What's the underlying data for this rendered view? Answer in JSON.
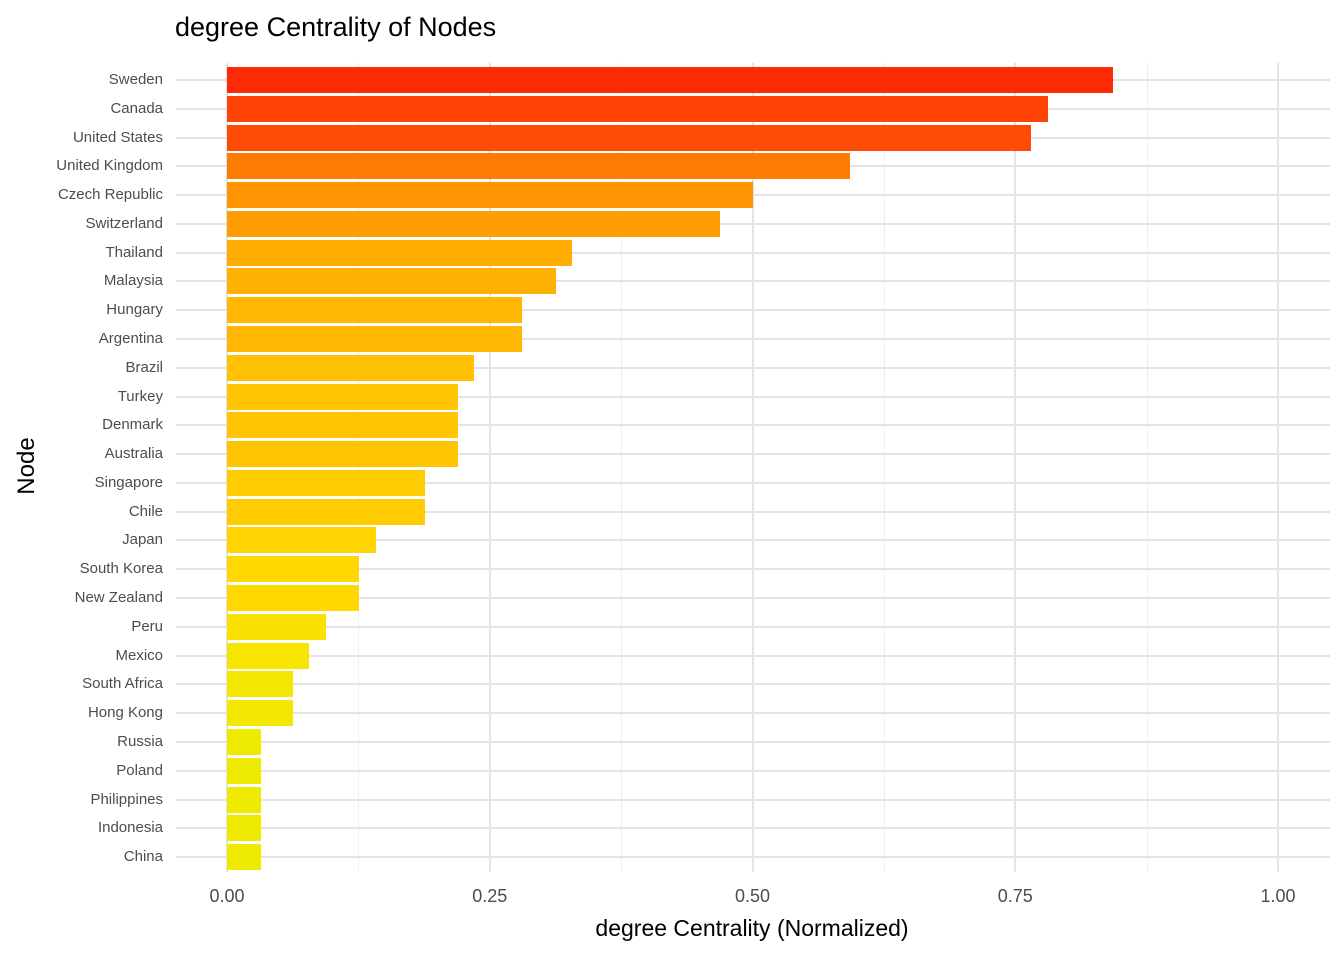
{
  "chart_data": {
    "type": "bar",
    "orientation": "horizontal",
    "title": "degree Centrality of Nodes",
    "xlabel": "degree Centrality (Normalized)",
    "ylabel": "Node",
    "xlim": [
      0,
      1.05
    ],
    "grid": true,
    "legend": "none",
    "x_ticks": {
      "labels": [
        "0.00",
        "0.25",
        "0.50",
        "0.75",
        "1.00"
      ],
      "values": [
        0,
        0.25,
        0.5,
        0.75,
        1.0
      ]
    },
    "x_minor_gridlines": [
      0.125,
      0.375,
      0.625,
      0.875
    ],
    "categories": [
      "Sweden",
      "Canada",
      "United States",
      "United Kingdom",
      "Czech Republic",
      "Switzerland",
      "Thailand",
      "Malaysia",
      "Hungary",
      "Argentina",
      "Brazil",
      "Turkey",
      "Denmark",
      "Australia",
      "Singapore",
      "Chile",
      "Japan",
      "South Korea",
      "New Zealand",
      "Peru",
      "Mexico",
      "South Africa",
      "Hong Kong",
      "Russia",
      "Poland",
      "Philippines",
      "Indonesia",
      "China"
    ],
    "values": [
      0.843,
      0.781,
      0.765,
      0.593,
      0.5,
      0.469,
      0.328,
      0.313,
      0.281,
      0.281,
      0.235,
      0.22,
      0.22,
      0.22,
      0.188,
      0.188,
      0.142,
      0.126,
      0.126,
      0.094,
      0.078,
      0.063,
      0.063,
      0.032,
      0.032,
      0.032,
      0.032,
      0.032
    ],
    "bar_colors": [
      "#FF2B06",
      "#FF4405",
      "#FF4B06",
      "#FF7C02",
      "#FF9403",
      "#FF9D03",
      "#FFAD02",
      "#FFB102",
      "#FFB702",
      "#FFB702",
      "#FFC102",
      "#FFC402",
      "#FFC402",
      "#FFC502",
      "#FFCC01",
      "#FFCC01",
      "#FFD401",
      "#FFD701",
      "#FFD701",
      "#FBE101",
      "#F8E401",
      "#F4E701",
      "#F4E701",
      "#EEEB00",
      "#EEEB00",
      "#EEEB00",
      "#EEEB00",
      "#EEEB00"
    ],
    "colors": {
      "background": "#FFFFFF",
      "grid_major": "#E4E4E4",
      "grid_minor": "#EFEFEF",
      "title_text": "#000000",
      "axis_text": "#4D4D4D"
    }
  }
}
